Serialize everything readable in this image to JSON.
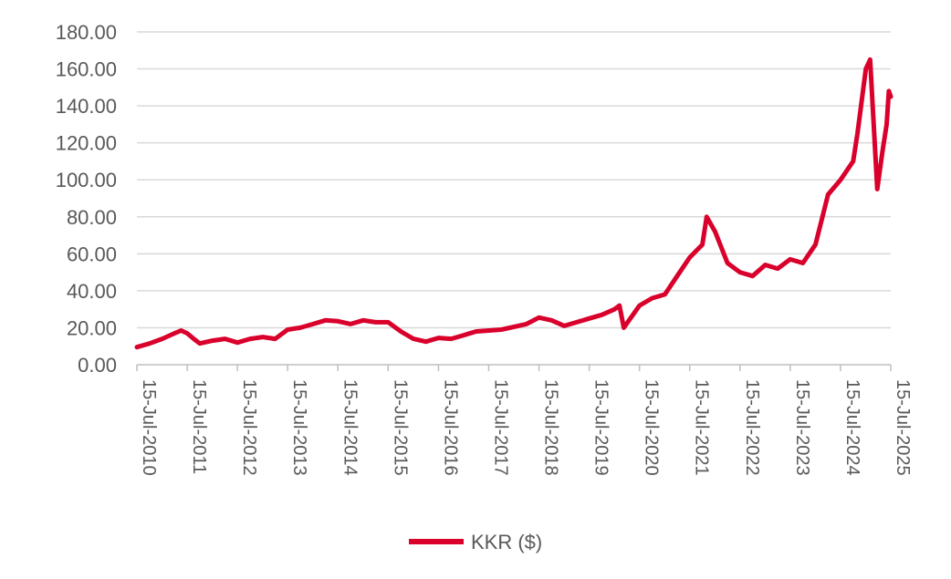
{
  "chart_data": {
    "type": "line",
    "title": "",
    "xlabel": "",
    "ylabel": "",
    "ylim": [
      0,
      180
    ],
    "y_ticks": [
      "0.00",
      "20.00",
      "40.00",
      "60.00",
      "80.00",
      "100.00",
      "120.00",
      "140.00",
      "160.00",
      "180.00"
    ],
    "x_ticks": [
      "15-Jul-2010",
      "15-Jul-2011",
      "15-Jul-2012",
      "15-Jul-2013",
      "15-Jul-2014",
      "15-Jul-2015",
      "15-Jul-2016",
      "15-Jul-2017",
      "15-Jul-2018",
      "15-Jul-2019",
      "15-Jul-2020",
      "15-Jul-2021",
      "15-Jul-2022",
      "15-Jul-2023",
      "15-Jul-2024",
      "15-Jul-2025"
    ],
    "xlim": [
      "2010-07-15",
      "2025-07-15"
    ],
    "grid": true,
    "legend_position": "bottom",
    "series": [
      {
        "name": "KKR ($)",
        "color": "#d9002b",
        "x": [
          "2010-07-15",
          "2010-10-15",
          "2011-01-15",
          "2011-04-15",
          "2011-06-01",
          "2011-07-15",
          "2011-09-01",
          "2011-10-15",
          "2012-01-15",
          "2012-04-15",
          "2012-07-15",
          "2012-10-15",
          "2013-01-15",
          "2013-04-15",
          "2013-07-15",
          "2013-10-15",
          "2014-01-15",
          "2014-04-15",
          "2014-07-15",
          "2014-10-15",
          "2015-01-15",
          "2015-04-15",
          "2015-07-15",
          "2015-10-15",
          "2016-01-15",
          "2016-04-15",
          "2016-07-15",
          "2016-10-15",
          "2017-01-15",
          "2017-04-15",
          "2017-07-15",
          "2017-10-15",
          "2018-01-15",
          "2018-04-15",
          "2018-07-15",
          "2018-10-15",
          "2019-01-15",
          "2019-04-15",
          "2019-07-15",
          "2019-10-15",
          "2020-01-15",
          "2020-02-20",
          "2020-03-23",
          "2020-07-15",
          "2020-10-15",
          "2021-01-15",
          "2021-04-15",
          "2021-07-15",
          "2021-10-15",
          "2021-11-15",
          "2022-01-15",
          "2022-04-15",
          "2022-07-15",
          "2022-10-15",
          "2023-01-15",
          "2023-04-15",
          "2023-07-15",
          "2023-10-15",
          "2024-01-15",
          "2024-04-15",
          "2024-07-15",
          "2024-10-15",
          "2024-11-15",
          "2025-01-15",
          "2025-02-15",
          "2025-04-08",
          "2025-05-15",
          "2025-06-15",
          "2025-07-01",
          "2025-07-15"
        ],
        "values": [
          9.5,
          11.5,
          14,
          17,
          18.5,
          17,
          14,
          11.5,
          13,
          14,
          12,
          14,
          15,
          14,
          19,
          20,
          22,
          24,
          23.5,
          22,
          24,
          23,
          23,
          18,
          14,
          12.5,
          14.5,
          14,
          16,
          18,
          18.5,
          19,
          20.5,
          22,
          25.5,
          24,
          21,
          23,
          25,
          27,
          30,
          32,
          20,
          32,
          36,
          38,
          48,
          58,
          65,
          80,
          72,
          55,
          50,
          48,
          54,
          52,
          57,
          55,
          65,
          92,
          100,
          110,
          125,
          160,
          165,
          95,
          115,
          130,
          148,
          145
        ]
      }
    ]
  }
}
